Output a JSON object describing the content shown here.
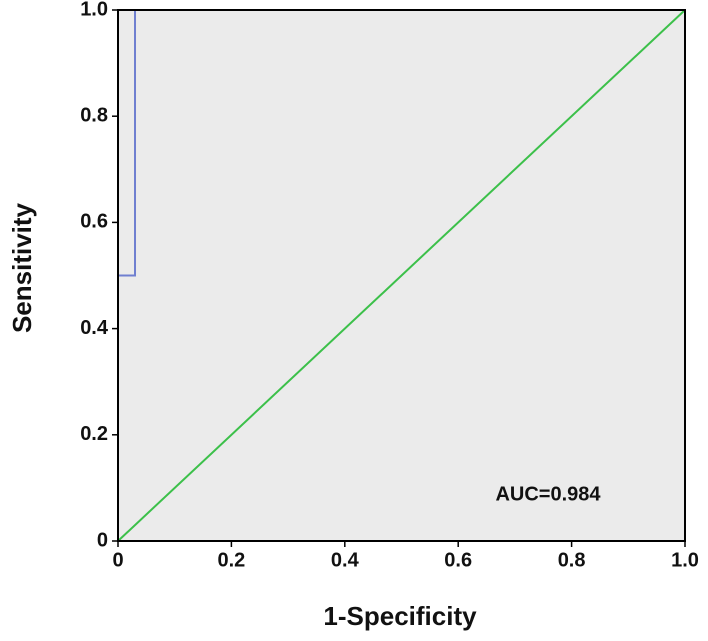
{
  "chart_data": {
    "type": "line",
    "xlabel": "1-Specificity",
    "ylabel": "Sensitivity",
    "annotation": "AUC=0.984",
    "series": [
      {
        "color": "#6f7fd0",
        "x": [
          0,
          0,
          0.03,
          0.03,
          1
        ],
        "values": [
          0,
          0.5,
          0.5,
          1,
          1
        ]
      },
      {
        "color": "#3cc04a",
        "x": [
          0,
          1
        ],
        "values": [
          0,
          1
        ]
      }
    ],
    "xlim": [
      0,
      1
    ],
    "ylim": [
      0,
      1
    ],
    "xticks": [
      0,
      0.2,
      0.4,
      0.6,
      0.8,
      {
        "value": 1,
        "label": "1.0"
      }
    ],
    "yticks": [
      0,
      0.2,
      0.4,
      0.6,
      0.8,
      {
        "value": 1,
        "label": "1.0"
      }
    ],
    "background": "#ebebeb"
  }
}
